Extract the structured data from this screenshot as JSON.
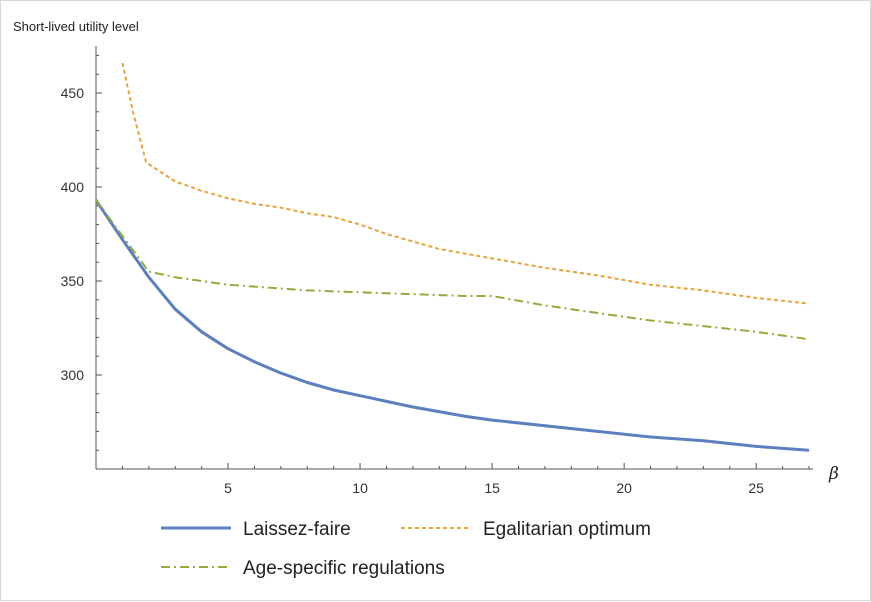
{
  "chart_data": {
    "type": "line",
    "ylabel": "Short-lived utility level",
    "xlabel": "β",
    "xlim": [
      0,
      27
    ],
    "ylim": [
      250,
      475
    ],
    "x_ticks": [
      5,
      10,
      15,
      20,
      25
    ],
    "y_ticks": [
      300,
      350,
      400,
      450
    ],
    "legend_position": "bottom",
    "series": [
      {
        "name": "Laissez-faire",
        "color": "#5b7fbf",
        "style": "solid",
        "x": [
          0,
          1,
          2,
          3,
          4,
          5,
          6,
          7,
          8,
          9,
          10,
          12,
          14,
          15,
          17,
          19,
          21,
          23,
          25,
          27
        ],
        "y": [
          393,
          372,
          352,
          335,
          323,
          314,
          307,
          301,
          296,
          292,
          289,
          283,
          278,
          276,
          273,
          270,
          267,
          265,
          262,
          260
        ]
      },
      {
        "name": "Egalitarian optimum",
        "color": "#e8a33a",
        "style": "dotted",
        "x": [
          1,
          1.4,
          1.9,
          3,
          4,
          5,
          6,
          7,
          8,
          9,
          10,
          11,
          12,
          13,
          15,
          17,
          19,
          21,
          23,
          25,
          27
        ],
        "y": [
          466,
          440,
          413,
          403,
          398,
          394,
          391,
          389,
          386,
          384,
          380,
          375,
          371,
          367,
          362,
          357,
          353,
          348,
          345,
          341,
          338
        ]
      },
      {
        "name": "Age-specific regulations",
        "color": "#8fae3a",
        "style": "dash-dot",
        "x": [
          0,
          1,
          2,
          3,
          4,
          5,
          6,
          8,
          10,
          12,
          14,
          15,
          17,
          19,
          21,
          23,
          25,
          27
        ],
        "y": [
          393,
          374,
          355,
          352,
          350,
          348,
          347,
          345,
          344,
          343,
          342,
          342,
          337,
          333,
          329,
          326,
          323,
          319
        ]
      }
    ]
  }
}
